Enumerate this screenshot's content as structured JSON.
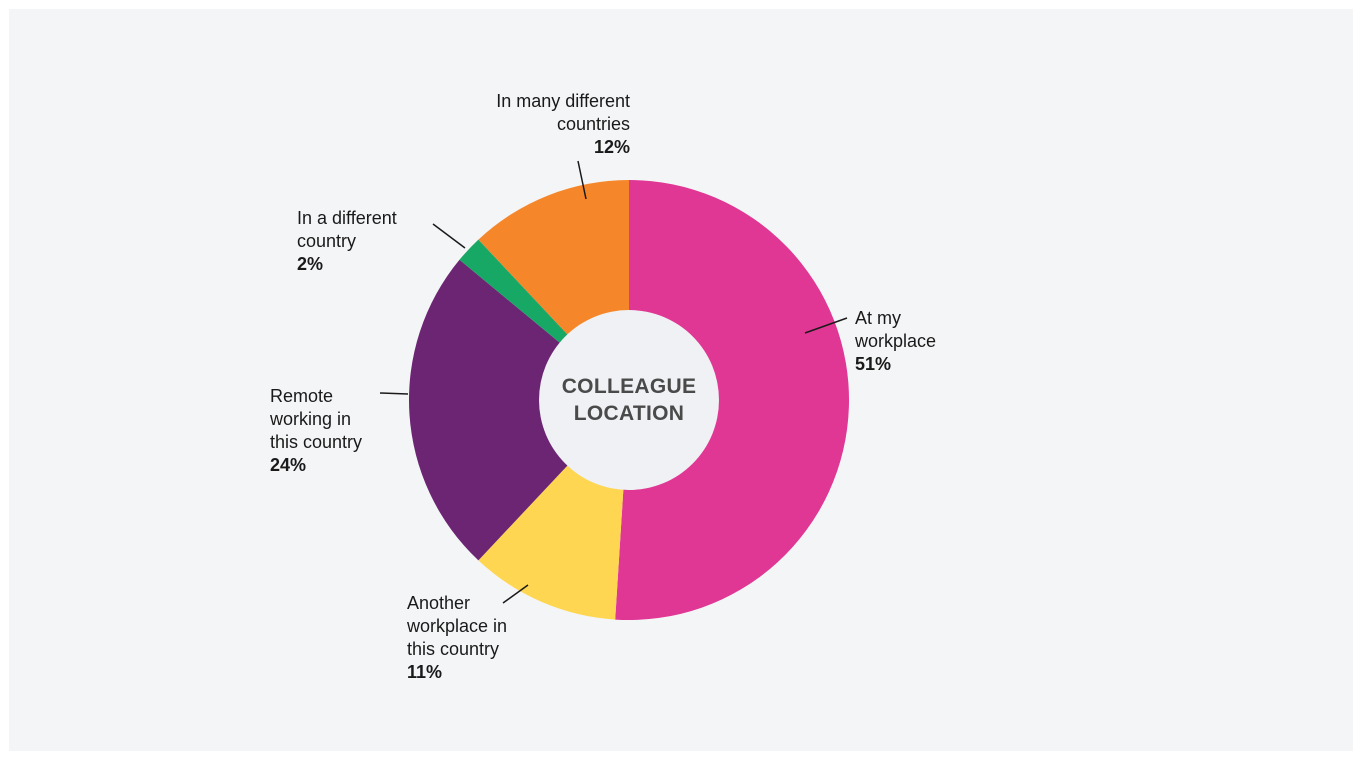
{
  "chart_data": {
    "type": "pie",
    "title": "COLLEAGUE LOCATION",
    "slices": [
      {
        "name": "At my workplace",
        "value": 51,
        "label": "51%",
        "color": "#e03694"
      },
      {
        "name": "Another workplace in this country",
        "value": 11,
        "label": "11%",
        "color": "#fed652"
      },
      {
        "name": "Remote working in this country",
        "value": 24,
        "label": "24%",
        "color": "#6b2572"
      },
      {
        "name": "In a different country",
        "value": 2,
        "label": "2%",
        "color": "#17a865"
      },
      {
        "name": "In many different countries",
        "value": 12,
        "label": "12%",
        "color": "#f5872a"
      }
    ]
  },
  "labels": {
    "at_workplace": {
      "line1": "At my",
      "line2": "workplace",
      "pct": "51%"
    },
    "another_workplace": {
      "line1": "Another",
      "line2": "workplace in",
      "line3": "this country",
      "pct": "11%"
    },
    "remote": {
      "line1": "Remote",
      "line2": "working in",
      "line3": "this country",
      "pct": "24%"
    },
    "different_country": {
      "line1": "In a different",
      "line2": "country",
      "pct": "2%"
    },
    "many_countries": {
      "line1": "In many different",
      "line2": "countries",
      "pct": "12%"
    }
  },
  "center": {
    "line1": "COLLEAGUE",
    "line2": "LOCATION"
  }
}
